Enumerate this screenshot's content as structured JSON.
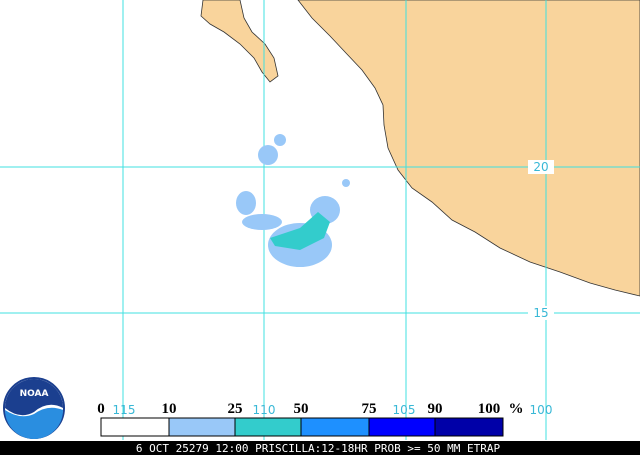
{
  "map": {
    "grid_labels": {
      "latitude": [
        "20",
        "15"
      ],
      "longitude": [
        "115",
        "110",
        "105",
        "100"
      ]
    },
    "legend": {
      "labels": [
        "0",
        "10",
        "25",
        "50",
        "75",
        "90",
        "100"
      ],
      "unit": "%"
    },
    "caption": "6 OCT 25279 12:00 PRISCILLA:12-18HR PROB >= 50 MM ETRAP",
    "logo": "NOAA"
  }
}
